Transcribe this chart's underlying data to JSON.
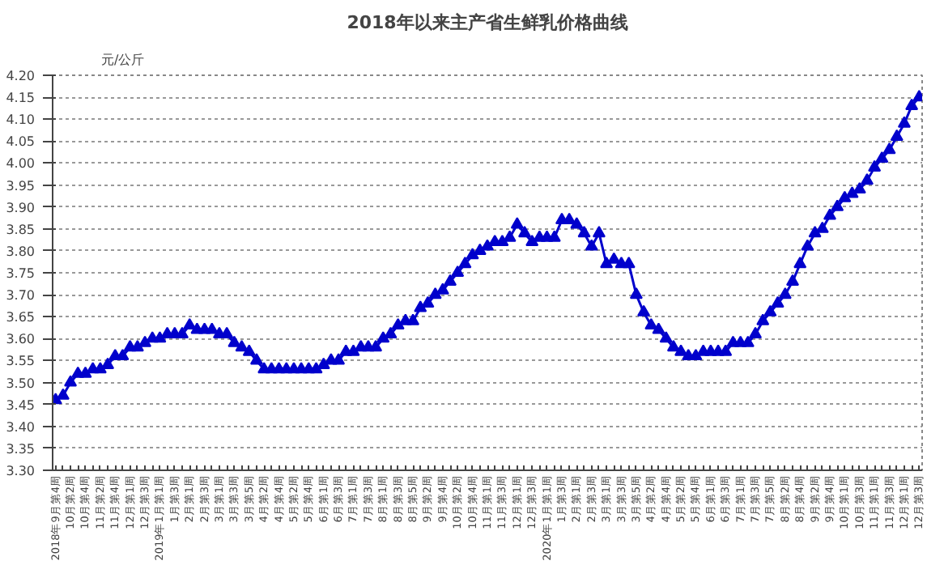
{
  "chart_data": {
    "type": "line",
    "title": "2018年以来主产省生鲜乳价格曲线",
    "ylabel": "元/公斤",
    "categories": [
      "2018年9月第4周",
      null,
      "10月第2周",
      null,
      "10月第4周",
      null,
      "11月第2周",
      null,
      "11月第4周",
      null,
      "12月第1周",
      null,
      "12月第3周",
      null,
      "2019年1月第1周",
      null,
      "1月第3周",
      null,
      "2月第1周",
      null,
      "2月第3周",
      null,
      "3月第1周",
      null,
      "3月第3周",
      null,
      "3月第5周",
      null,
      "4月第2周",
      null,
      "4月第4周",
      null,
      "5月第2周",
      null,
      "5月第4周",
      null,
      "6月第1周",
      null,
      "6月第3周",
      null,
      "7月第1周",
      null,
      "7月第3周",
      null,
      "8月第1周",
      null,
      "8月第3周",
      null,
      "8月第5周",
      null,
      "9月第2周",
      null,
      "9月第4周",
      null,
      "10月第2周",
      null,
      "10月第4周",
      null,
      "11月第1周",
      null,
      "11月第3周",
      null,
      "12月第1周",
      null,
      "12月第3周",
      null,
      "2020年1月第1周",
      null,
      "1月第3周",
      null,
      "2月第1周",
      null,
      "2月第3周",
      null,
      "3月第1周",
      null,
      "3月第3周",
      null,
      "3月第5周",
      null,
      "4月第2周",
      null,
      "4月第4周",
      null,
      "5月第2周",
      null,
      "5月第4周",
      null,
      "6月第1周",
      null,
      "6月第3周",
      null,
      "7月第1周",
      null,
      "7月第3周",
      null,
      "7月第5周",
      null,
      "8月第2周",
      null,
      "8月第4周",
      null,
      "9月第2周",
      null,
      "9月第4周",
      null,
      "10月第1周",
      null,
      "10月第3周",
      null,
      "11月第1周",
      null,
      "11月第3周",
      null,
      "12月第1周",
      null,
      "12月第3周"
    ],
    "series": [
      {
        "color": "#0000cc",
        "values": [
          3.46,
          3.47,
          3.5,
          3.52,
          3.52,
          3.53,
          3.53,
          3.54,
          3.56,
          3.56,
          3.58,
          3.58,
          3.59,
          3.6,
          3.6,
          3.61,
          3.61,
          3.61,
          3.63,
          3.62,
          3.62,
          3.62,
          3.61,
          3.61,
          3.59,
          3.58,
          3.57,
          3.55,
          3.53,
          3.53,
          3.53,
          3.53,
          3.53,
          3.53,
          3.53,
          3.53,
          3.54,
          3.55,
          3.55,
          3.57,
          3.57,
          3.58,
          3.58,
          3.58,
          3.6,
          3.61,
          3.63,
          3.64,
          3.64,
          3.67,
          3.68,
          3.7,
          3.71,
          3.73,
          3.75,
          3.77,
          3.79,
          3.8,
          3.81,
          3.82,
          3.82,
          3.83,
          3.86,
          3.84,
          3.82,
          3.83,
          3.83,
          3.83,
          3.87,
          3.87,
          3.86,
          3.84,
          3.81,
          3.84,
          3.77,
          3.78,
          3.77,
          3.77,
          3.7,
          3.66,
          3.63,
          3.62,
          3.6,
          3.58,
          3.57,
          3.56,
          3.56,
          3.57,
          3.57,
          3.57,
          3.57,
          3.59,
          3.59,
          3.59,
          3.61,
          3.64,
          3.66,
          3.68,
          3.7,
          3.73,
          3.77,
          3.81,
          3.84,
          3.85,
          3.88,
          3.9,
          3.92,
          3.93,
          3.94,
          3.96,
          3.99,
          4.01,
          4.03,
          4.06,
          4.09,
          4.13,
          4.15
        ]
      }
    ],
    "ylim": [
      3.3,
      4.2
    ],
    "yticks": [
      {
        "value": 3.3,
        "label": "3.30"
      },
      {
        "value": 3.35,
        "label": "3.35"
      },
      {
        "value": 3.4,
        "label": "3.40"
      },
      {
        "value": 3.45,
        "label": "3.45"
      },
      {
        "value": 3.5,
        "label": "3.50"
      },
      {
        "value": 3.55,
        "label": "3.55"
      },
      {
        "value": 3.6,
        "label": "3.60"
      },
      {
        "value": 3.65,
        "label": "3.65"
      },
      {
        "value": 3.7,
        "label": "3.70"
      },
      {
        "value": 3.75,
        "label": "3.75"
      },
      {
        "value": 3.8,
        "label": "3.80"
      },
      {
        "value": 3.85,
        "label": "3.85"
      },
      {
        "value": 3.9,
        "label": "3.90"
      },
      {
        "value": 3.95,
        "label": "3.95"
      },
      {
        "value": 4.0,
        "label": "4.00"
      },
      {
        "value": 4.05,
        "label": "4.05"
      },
      {
        "value": 4.1,
        "label": "4.10"
      },
      {
        "value": 4.15,
        "label": "4.15"
      },
      {
        "value": 4.2,
        "label": "4.20"
      }
    ],
    "grid": "y",
    "marker": "triangle",
    "line_style": "solid"
  }
}
